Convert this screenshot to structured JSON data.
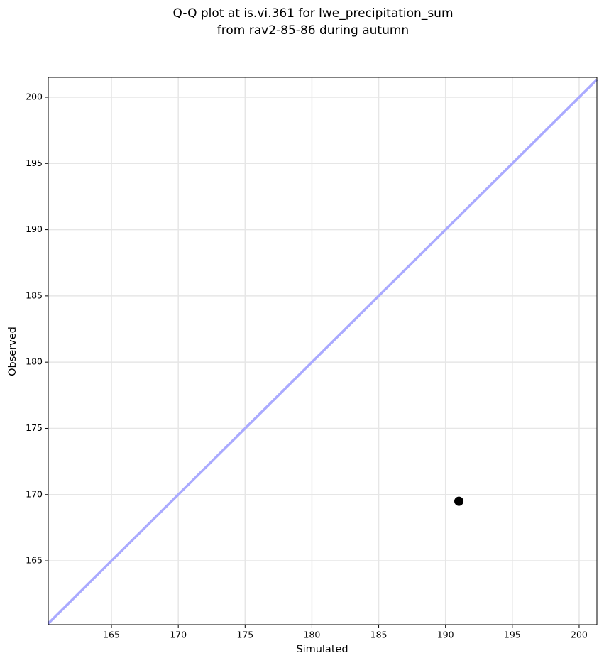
{
  "chart_data": {
    "type": "scatter",
    "title": [
      "Q-Q plot at is.vi.361 for lwe_precipitation_sum",
      "from rav2-85-86 during autumn"
    ],
    "xlabel": "Simulated",
    "ylabel": "Observed",
    "x": [
      191
    ],
    "values": [
      169.5
    ],
    "color": "#000000",
    "xlim": [
      160.27,
      201.33
    ],
    "ylim": [
      160.18,
      201.5
    ],
    "xticks": [
      165,
      170,
      175,
      180,
      185,
      190,
      195,
      200
    ],
    "yticks": [
      165,
      170,
      175,
      180,
      185,
      190,
      195,
      200
    ],
    "grid": true,
    "identity_line": true,
    "identity_color": "#aaaaff"
  }
}
